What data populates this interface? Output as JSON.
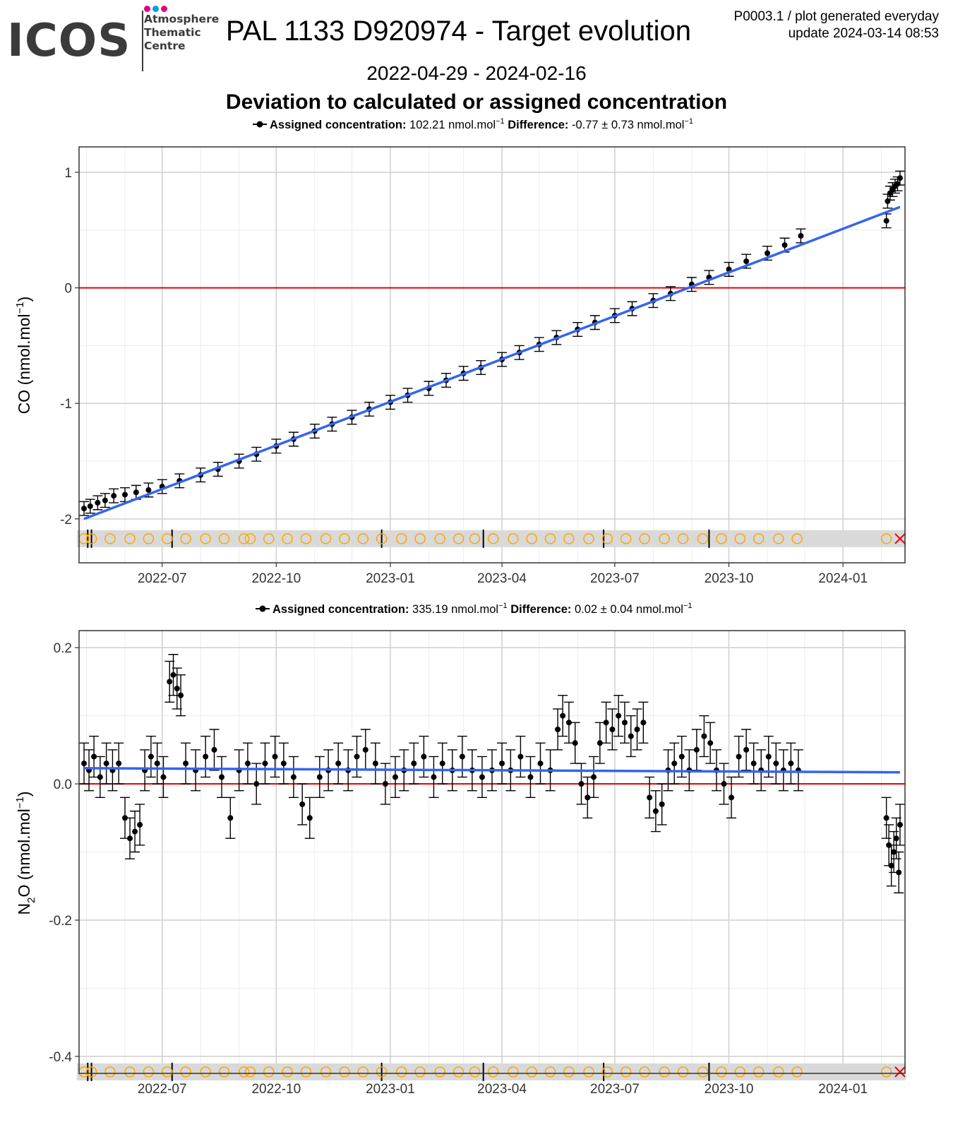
{
  "header": {
    "logo_text": "ICOS",
    "logo_lines": [
      "Atmosphere",
      "Thematic",
      "Centre"
    ],
    "logo_dot_colors": [
      "#e6007e",
      "#00a0e3",
      "#e6007e"
    ],
    "title": "PAL 1133 D920974 - Target evolution",
    "meta_line1": "P0003.1 / plot generated everyday",
    "meta_line2": "update  2024-03-14 08:53",
    "date_range": "2022-04-29 - 2024-02-16",
    "subtitle": "Deviation to calculated or assigned concentration"
  },
  "colors": {
    "trend": "#3366ee",
    "zero_line": "#ee0000",
    "points": "#000000",
    "status_marker": "#ffa500",
    "status_band": "#d9d9d9",
    "flag_marker": "#ee0000"
  },
  "chart_data": [
    {
      "type": "scatter",
      "ylabel": "CO (nmol.mol",
      "ylabel_sup": "−1",
      "ylabel_tail": ")",
      "legend": {
        "assigned_label": "Assigned concentration:",
        "assigned_value": "102.21 nmol.mol",
        "diff_label": "Difference:",
        "diff_value": "-0.77 ± 0.73 nmol.mol",
        "sup": "−1"
      },
      "x_ticks": [
        "2022-07",
        "2022-10",
        "2023-01",
        "2023-04",
        "2023-07",
        "2023-10",
        "2024-01"
      ],
      "y_ticks": [
        "1",
        "0",
        "-1",
        "-2"
      ],
      "ylim": [
        -2.38,
        1.22
      ],
      "xlim": [
        "2022-04-25",
        "2024-02-20"
      ],
      "grid": true,
      "reference_line": 0,
      "trend": {
        "start": [
          "2022-04-29",
          -2.0
        ],
        "end": [
          "2024-02-16",
          0.7
        ]
      },
      "points": [
        [
          "2022-04-29",
          -1.91
        ],
        [
          "2022-05-04",
          -1.89
        ],
        [
          "2022-05-10",
          -1.86
        ],
        [
          "2022-05-16",
          -1.84
        ],
        [
          "2022-05-23",
          -1.8
        ],
        [
          "2022-06-01",
          -1.79
        ],
        [
          "2022-06-10",
          -1.77
        ],
        [
          "2022-06-20",
          -1.75
        ],
        [
          "2022-07-01",
          -1.72
        ],
        [
          "2022-07-15",
          -1.67
        ],
        [
          "2022-08-01",
          -1.62
        ],
        [
          "2022-08-15",
          -1.57
        ],
        [
          "2022-09-01",
          -1.5
        ],
        [
          "2022-09-15",
          -1.44
        ],
        [
          "2022-10-01",
          -1.37
        ],
        [
          "2022-10-15",
          -1.31
        ],
        [
          "2022-11-01",
          -1.24
        ],
        [
          "2022-11-15",
          -1.18
        ],
        [
          "2022-12-01",
          -1.12
        ],
        [
          "2022-12-15",
          -1.05
        ],
        [
          "2023-01-01",
          -0.99
        ],
        [
          "2023-01-15",
          -0.93
        ],
        [
          "2023-02-01",
          -0.87
        ],
        [
          "2023-02-15",
          -0.8
        ],
        [
          "2023-03-01",
          -0.74
        ],
        [
          "2023-03-15",
          -0.69
        ],
        [
          "2023-04-01",
          -0.62
        ],
        [
          "2023-04-15",
          -0.56
        ],
        [
          "2023-05-01",
          -0.49
        ],
        [
          "2023-05-15",
          -0.43
        ],
        [
          "2023-06-01",
          -0.36
        ],
        [
          "2023-06-15",
          -0.3
        ],
        [
          "2023-07-01",
          -0.24
        ],
        [
          "2023-07-15",
          -0.18
        ],
        [
          "2023-08-01",
          -0.11
        ],
        [
          "2023-08-15",
          -0.05
        ],
        [
          "2023-09-01",
          0.03
        ],
        [
          "2023-09-15",
          0.09
        ],
        [
          "2023-10-01",
          0.16
        ],
        [
          "2023-10-15",
          0.23
        ],
        [
          "2023-11-01",
          0.3
        ],
        [
          "2023-11-15",
          0.37
        ],
        [
          "2023-11-28",
          0.45
        ],
        [
          "2024-02-05",
          0.58
        ],
        [
          "2024-02-06",
          0.75
        ],
        [
          "2024-02-08",
          0.82
        ],
        [
          "2024-02-10",
          0.85
        ],
        [
          "2024-02-12",
          0.88
        ],
        [
          "2024-02-14",
          0.9
        ],
        [
          "2024-02-16",
          0.95
        ]
      ],
      "error_bar": 0.06,
      "status_markers": [
        "2022-04-29",
        "2022-05-05",
        "2022-05-20",
        "2022-06-05",
        "2022-06-20",
        "2022-07-05",
        "2022-07-20",
        "2022-08-05",
        "2022-08-20",
        "2022-09-05",
        "2022-09-10",
        "2022-09-25",
        "2022-10-10",
        "2022-10-25",
        "2022-11-10",
        "2022-11-25",
        "2022-12-10",
        "2022-12-25",
        "2023-01-10",
        "2023-01-25",
        "2023-02-10",
        "2023-02-25",
        "2023-03-10",
        "2023-03-25",
        "2023-04-10",
        "2023-04-25",
        "2023-05-10",
        "2023-05-25",
        "2023-06-10",
        "2023-06-25",
        "2023-07-10",
        "2023-07-25",
        "2023-08-10",
        "2023-08-25",
        "2023-09-10",
        "2023-09-25",
        "2023-10-10",
        "2023-10-25",
        "2023-11-10",
        "2023-11-25",
        "2024-02-05"
      ],
      "flag_marker": "2024-02-16",
      "event_lines": [
        "2022-05-02",
        "2022-05-05",
        "2022-07-09",
        "2022-12-25",
        "2023-03-17",
        "2023-06-22",
        "2023-09-15"
      ]
    },
    {
      "type": "scatter",
      "ylabel": "N",
      "ylabel_sub": "2",
      "ylabel_tail": "O (nmol.mol",
      "ylabel_sup": "−1",
      "ylabel_end": ")",
      "legend": {
        "assigned_label": "Assigned concentration:",
        "assigned_value": "335.19 nmol.mol",
        "diff_label": "Difference:",
        "diff_value": "0.02 ± 0.04 nmol.mol",
        "sup": "−1"
      },
      "x_ticks": [
        "2022-07",
        "2022-10",
        "2023-01",
        "2023-04",
        "2023-07",
        "2023-10",
        "2024-01"
      ],
      "y_ticks": [
        "0.2",
        "0.0",
        "-0.2",
        "-0.4"
      ],
      "ylim": [
        -0.425,
        0.225
      ],
      "xlim": [
        "2022-04-25",
        "2024-02-20"
      ],
      "grid": true,
      "reference_line": 0,
      "trend": {
        "start": [
          "2022-04-29",
          0.023
        ],
        "end": [
          "2024-02-16",
          0.017
        ]
      },
      "points": [
        [
          "2022-04-29",
          0.03
        ],
        [
          "2022-05-03",
          0.02
        ],
        [
          "2022-05-07",
          0.04
        ],
        [
          "2022-05-12",
          0.01
        ],
        [
          "2022-05-17",
          0.03
        ],
        [
          "2022-05-22",
          0.02
        ],
        [
          "2022-05-27",
          0.03
        ],
        [
          "2022-06-01",
          -0.05
        ],
        [
          "2022-06-05",
          -0.08
        ],
        [
          "2022-06-09",
          -0.07
        ],
        [
          "2022-06-13",
          -0.06
        ],
        [
          "2022-06-17",
          0.02
        ],
        [
          "2022-06-22",
          0.04
        ],
        [
          "2022-06-27",
          0.03
        ],
        [
          "2022-07-02",
          0.01
        ],
        [
          "2022-07-07",
          0.15
        ],
        [
          "2022-07-10",
          0.16
        ],
        [
          "2022-07-13",
          0.14
        ],
        [
          "2022-07-16",
          0.13
        ],
        [
          "2022-07-20",
          0.03
        ],
        [
          "2022-07-28",
          0.02
        ],
        [
          "2022-08-05",
          0.04
        ],
        [
          "2022-08-12",
          0.05
        ],
        [
          "2022-08-18",
          0.01
        ],
        [
          "2022-08-25",
          -0.05
        ],
        [
          "2022-09-01",
          0.02
        ],
        [
          "2022-09-08",
          0.03
        ],
        [
          "2022-09-15",
          0.0
        ],
        [
          "2022-09-22",
          0.03
        ],
        [
          "2022-09-30",
          0.04
        ],
        [
          "2022-10-07",
          0.03
        ],
        [
          "2022-10-15",
          0.01
        ],
        [
          "2022-10-22",
          -0.03
        ],
        [
          "2022-10-28",
          -0.05
        ],
        [
          "2022-11-05",
          0.01
        ],
        [
          "2022-11-12",
          0.02
        ],
        [
          "2022-11-20",
          0.03
        ],
        [
          "2022-11-28",
          0.02
        ],
        [
          "2022-12-05",
          0.04
        ],
        [
          "2022-12-12",
          0.05
        ],
        [
          "2022-12-20",
          0.03
        ],
        [
          "2022-12-28",
          0.0
        ],
        [
          "2023-01-05",
          0.01
        ],
        [
          "2023-01-12",
          0.02
        ],
        [
          "2023-01-20",
          0.03
        ],
        [
          "2023-01-28",
          0.04
        ],
        [
          "2023-02-05",
          0.01
        ],
        [
          "2023-02-12",
          0.03
        ],
        [
          "2023-02-20",
          0.02
        ],
        [
          "2023-02-28",
          0.04
        ],
        [
          "2023-03-08",
          0.02
        ],
        [
          "2023-03-16",
          0.01
        ],
        [
          "2023-03-24",
          0.02
        ],
        [
          "2023-04-01",
          0.03
        ],
        [
          "2023-04-08",
          0.02
        ],
        [
          "2023-04-16",
          0.04
        ],
        [
          "2023-04-24",
          0.01
        ],
        [
          "2023-05-02",
          0.03
        ],
        [
          "2023-05-10",
          0.02
        ],
        [
          "2023-05-16",
          0.08
        ],
        [
          "2023-05-20",
          0.1
        ],
        [
          "2023-05-25",
          0.09
        ],
        [
          "2023-05-30",
          0.06
        ],
        [
          "2023-06-04",
          0.0
        ],
        [
          "2023-06-09",
          -0.02
        ],
        [
          "2023-06-14",
          0.01
        ],
        [
          "2023-06-19",
          0.06
        ],
        [
          "2023-06-24",
          0.09
        ],
        [
          "2023-06-29",
          0.08
        ],
        [
          "2023-07-04",
          0.1
        ],
        [
          "2023-07-09",
          0.09
        ],
        [
          "2023-07-14",
          0.07
        ],
        [
          "2023-07-19",
          0.08
        ],
        [
          "2023-07-24",
          0.09
        ],
        [
          "2023-07-29",
          -0.02
        ],
        [
          "2023-08-03",
          -0.04
        ],
        [
          "2023-08-08",
          -0.03
        ],
        [
          "2023-08-13",
          0.02
        ],
        [
          "2023-08-18",
          0.03
        ],
        [
          "2023-08-24",
          0.04
        ],
        [
          "2023-08-30",
          0.02
        ],
        [
          "2023-09-05",
          0.05
        ],
        [
          "2023-09-11",
          0.07
        ],
        [
          "2023-09-16",
          0.06
        ],
        [
          "2023-09-21",
          0.02
        ],
        [
          "2023-09-27",
          0.0
        ],
        [
          "2023-10-03",
          -0.02
        ],
        [
          "2023-10-09",
          0.04
        ],
        [
          "2023-10-15",
          0.05
        ],
        [
          "2023-10-21",
          0.03
        ],
        [
          "2023-10-27",
          0.02
        ],
        [
          "2023-11-02",
          0.04
        ],
        [
          "2023-11-08",
          0.03
        ],
        [
          "2023-11-14",
          0.02
        ],
        [
          "2023-11-20",
          0.03
        ],
        [
          "2023-11-26",
          0.02
        ],
        [
          "2024-02-05",
          -0.05
        ],
        [
          "2024-02-07",
          -0.09
        ],
        [
          "2024-02-09",
          -0.12
        ],
        [
          "2024-02-11",
          -0.1
        ],
        [
          "2024-02-13",
          -0.08
        ],
        [
          "2024-02-15",
          -0.13
        ],
        [
          "2024-02-16",
          -0.06
        ]
      ],
      "error_bar": 0.03,
      "status_markers": [
        "2022-04-29",
        "2022-05-05",
        "2022-05-20",
        "2022-06-05",
        "2022-06-20",
        "2022-07-05",
        "2022-07-20",
        "2022-08-05",
        "2022-08-20",
        "2022-09-05",
        "2022-09-10",
        "2022-09-25",
        "2022-10-10",
        "2022-10-25",
        "2022-11-10",
        "2022-11-25",
        "2022-12-10",
        "2022-12-25",
        "2023-01-10",
        "2023-01-25",
        "2023-02-10",
        "2023-02-25",
        "2023-03-10",
        "2023-03-25",
        "2023-04-10",
        "2023-04-25",
        "2023-05-10",
        "2023-05-25",
        "2023-06-10",
        "2023-06-25",
        "2023-07-10",
        "2023-07-25",
        "2023-08-10",
        "2023-08-25",
        "2023-09-10",
        "2023-09-25",
        "2023-10-10",
        "2023-10-25",
        "2023-11-10",
        "2023-11-25",
        "2024-02-05"
      ],
      "flag_marker": "2024-02-16",
      "event_lines": [
        "2022-05-02",
        "2022-05-05",
        "2022-07-09",
        "2022-12-25",
        "2023-03-17",
        "2023-06-22",
        "2023-09-15"
      ]
    }
  ]
}
